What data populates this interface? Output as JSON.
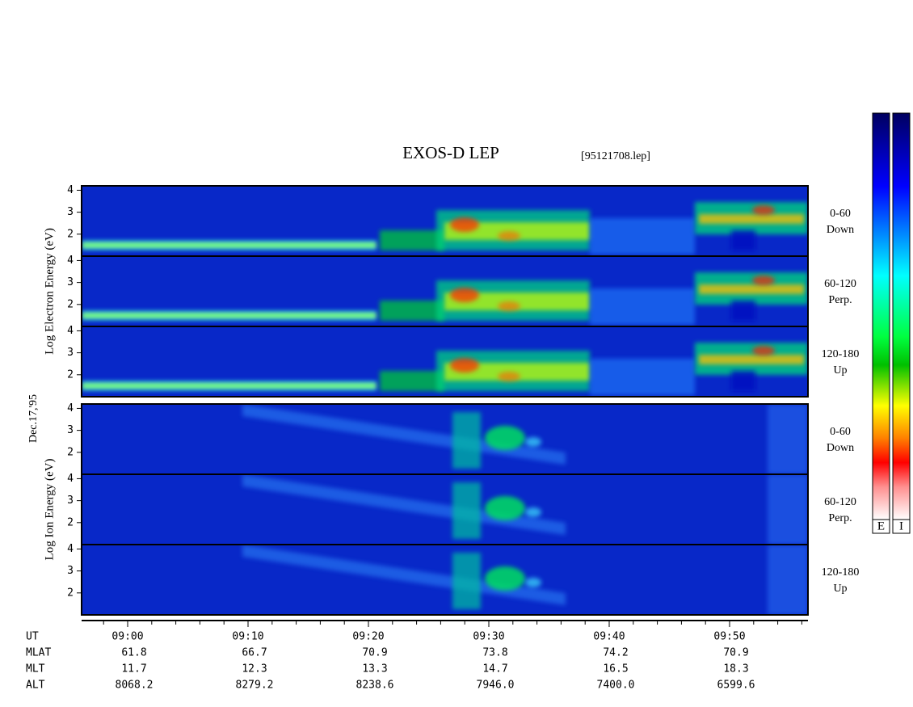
{
  "chart_data": {
    "type": "spectrogram",
    "title": "EXOS-D LEP",
    "file_label": "[95121708.lep]",
    "date_label": "Dec.17,'95",
    "ylim": [
      1.0,
      4.2
    ],
    "yticks": [
      2,
      3,
      4
    ],
    "groups": [
      {
        "ylabel": "Log Electron Energy (eV)",
        "panels": [
          [
            "0-60",
            "Down"
          ],
          [
            "60-120",
            "Perp."
          ],
          [
            "120-180",
            "Up"
          ]
        ]
      },
      {
        "ylabel": "Log Ion Energy (eV)",
        "panels": [
          [
            "0-60",
            "Down"
          ],
          [
            "60-120",
            "Perp."
          ],
          [
            "120-180",
            "Up"
          ]
        ]
      }
    ],
    "colorbar_labels": [
      "E",
      "I"
    ],
    "ephemeris": {
      "labels": [
        "UT",
        "MLAT",
        "MLT",
        "ALT"
      ],
      "rows": [
        [
          "09:00",
          "09:10",
          "09:20",
          "09:30",
          "09:40",
          "09:50"
        ],
        [
          "61.8",
          "66.7",
          "70.9",
          "73.8",
          "74.2",
          "70.9"
        ],
        [
          "11.7",
          "12.3",
          "13.3",
          "14.7",
          "16.5",
          "18.3"
        ],
        [
          "8068.2",
          "8279.2",
          "8238.6",
          "7946.0",
          "7400.0",
          "6599.6"
        ]
      ]
    }
  }
}
